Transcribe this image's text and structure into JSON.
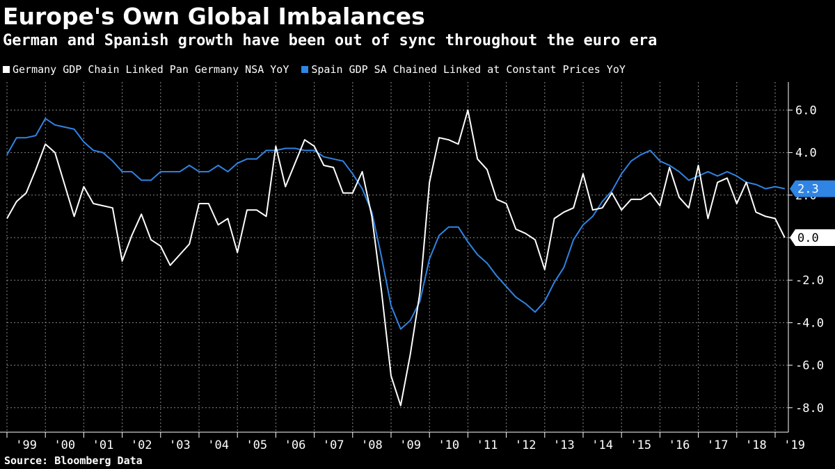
{
  "header": {
    "title": "Europe's Own Global Imbalances",
    "subtitle": "German and Spanish growth have been out of sync throughout the euro era"
  },
  "footer": {
    "source": "Source: Bloomberg Data"
  },
  "colors": {
    "germany": "#ffffff",
    "spain": "#2f84e4",
    "grid": "#8a8a8a",
    "background": "#000000"
  },
  "chart_data": {
    "type": "line",
    "title": "Europe's Own Global Imbalances",
    "subtitle": "German and Spanish growth have been out of sync throughout the euro era",
    "xlabel": "",
    "ylabel": "",
    "ylim": [
      -9.0,
      7.0
    ],
    "yticks": [
      6.0,
      4.0,
      2.0,
      0.0,
      -2.0,
      -4.0,
      -6.0,
      -8.0
    ],
    "ytick_labels": [
      "6.0",
      "4.0",
      "2.0",
      "0.0",
      "-2.0",
      "-4.0",
      "-6.0",
      "-8.0"
    ],
    "xlim": [
      1999.0,
      2019.5
    ],
    "xticks": [
      "'99",
      "'00",
      "'01",
      "'02",
      "'03",
      "'04",
      "'05",
      "'06",
      "'07",
      "'08",
      "'09",
      "'10",
      "'11",
      "'12",
      "'13",
      "'14",
      "'15",
      "'16",
      "'17",
      "'18",
      "'19"
    ],
    "grid": true,
    "legend_position": "top-left",
    "last_value_labels": [
      "2.3",
      "0.0"
    ],
    "series": [
      {
        "name": "Germany GDP Chain Linked Pan Germany NSA YoY",
        "color": "#ffffff",
        "start_year": 1999.0,
        "step": 0.25,
        "values": [
          0.9,
          1.7,
          2.1,
          3.2,
          4.4,
          4.0,
          2.5,
          1.0,
          2.4,
          1.6,
          1.5,
          1.4,
          -1.1,
          0.1,
          1.1,
          -0.1,
          -0.4,
          -1.3,
          -0.8,
          -0.3,
          1.6,
          1.6,
          0.6,
          0.9,
          -0.7,
          1.3,
          1.3,
          1.0,
          4.3,
          2.4,
          3.5,
          4.6,
          4.3,
          3.4,
          3.3,
          2.1,
          2.1,
          3.1,
          1.0,
          -2.5,
          -6.5,
          -7.9,
          -5.5,
          -2.6,
          2.6,
          4.7,
          4.6,
          4.4,
          6.0,
          3.7,
          3.2,
          1.8,
          1.6,
          0.4,
          0.2,
          -0.1,
          -1.5,
          0.9,
          1.2,
          1.4,
          3.0,
          1.3,
          1.4,
          2.1,
          1.3,
          1.8,
          1.8,
          2.1,
          1.5,
          3.3,
          1.9,
          1.4,
          3.4,
          0.9,
          2.6,
          2.8,
          1.6,
          2.6,
          1.2,
          1.0,
          0.9,
          0.0
        ]
      },
      {
        "name": "Spain GDP SA Chained Linked at Constant Prices YoY",
        "color": "#2f84e4",
        "start_year": 1999.0,
        "step": 0.25,
        "values": [
          3.9,
          4.7,
          4.7,
          4.8,
          5.6,
          5.3,
          5.2,
          5.1,
          4.5,
          4.1,
          4.0,
          3.6,
          3.1,
          3.1,
          2.7,
          2.7,
          3.1,
          3.1,
          3.1,
          3.4,
          3.1,
          3.1,
          3.4,
          3.1,
          3.5,
          3.7,
          3.7,
          4.1,
          4.1,
          4.2,
          4.2,
          4.1,
          4.1,
          3.8,
          3.7,
          3.6,
          3.0,
          2.3,
          1.2,
          -0.9,
          -3.2,
          -4.3,
          -3.9,
          -3.0,
          -1.0,
          0.1,
          0.5,
          0.5,
          -0.2,
          -0.8,
          -1.2,
          -1.8,
          -2.3,
          -2.8,
          -3.1,
          -3.5,
          -3.0,
          -2.1,
          -1.4,
          -0.1,
          0.6,
          1.0,
          1.7,
          2.2,
          3.0,
          3.6,
          3.9,
          4.1,
          3.6,
          3.4,
          3.1,
          2.7,
          2.9,
          3.1,
          2.9,
          3.1,
          2.9,
          2.6,
          2.5,
          2.3,
          2.4,
          2.3
        ]
      }
    ]
  }
}
